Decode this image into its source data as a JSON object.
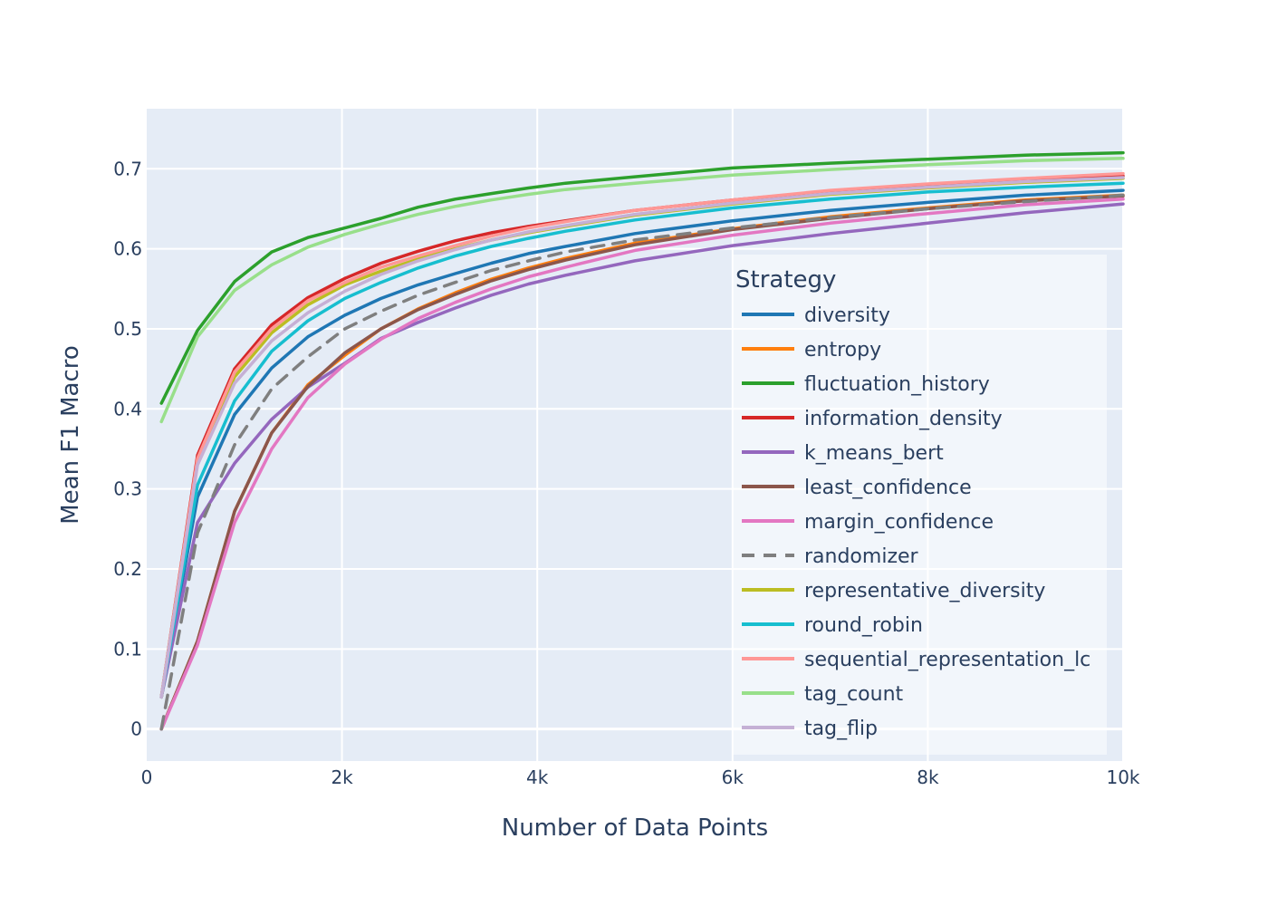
{
  "chart_data": {
    "type": "line",
    "title": "",
    "xlabel": "Number of Data Points",
    "ylabel": "Mean F1 Macro",
    "xlim": [
      0,
      10000
    ],
    "ylim": [
      -0.04,
      0.775
    ],
    "x_ticks": [
      0,
      2000,
      4000,
      6000,
      8000,
      10000
    ],
    "x_tick_labels": [
      "0",
      "2k",
      "4k",
      "6k",
      "8k",
      "10k"
    ],
    "y_ticks": [
      0,
      0.1,
      0.2,
      0.3,
      0.4,
      0.5,
      0.6,
      0.7
    ],
    "y_tick_labels": [
      "0",
      "0.1",
      "0.2",
      "0.3",
      "0.4",
      "0.5",
      "0.6",
      "0.7"
    ],
    "grid": true,
    "legend_title": "Strategy",
    "legend_position": "bottom-right",
    "x": [
      150,
      520,
      900,
      1280,
      1650,
      2030,
      2400,
      2780,
      3160,
      3530,
      3910,
      4290,
      5000,
      6000,
      7000,
      8000,
      9000,
      10000
    ],
    "series": [
      {
        "name": "diversity",
        "color": "#1f77b4",
        "dash": false,
        "values": [
          0.04,
          0.29,
          0.393,
          0.451,
          0.49,
          0.517,
          0.538,
          0.555,
          0.569,
          0.582,
          0.594,
          0.603,
          0.619,
          0.635,
          0.648,
          0.658,
          0.667,
          0.673
        ]
      },
      {
        "name": "entropy",
        "color": "#ff7f0e",
        "dash": false,
        "values": [
          0.0,
          0.11,
          0.272,
          0.37,
          0.43,
          0.467,
          0.5,
          0.525,
          0.545,
          0.562,
          0.576,
          0.588,
          0.607,
          0.625,
          0.64,
          0.651,
          0.661,
          0.667
        ]
      },
      {
        "name": "fluctuation_history",
        "color": "#2ca02c",
        "dash": false,
        "values": [
          0.407,
          0.498,
          0.559,
          0.596,
          0.614,
          0.626,
          0.638,
          0.652,
          0.662,
          0.669,
          0.676,
          0.682,
          0.69,
          0.701,
          0.707,
          0.712,
          0.717,
          0.72
        ]
      },
      {
        "name": "information_density",
        "color": "#d62728",
        "dash": false,
        "values": [
          0.04,
          0.342,
          0.45,
          0.505,
          0.539,
          0.563,
          0.582,
          0.597,
          0.61,
          0.62,
          0.628,
          0.635,
          0.648,
          0.661,
          0.672,
          0.68,
          0.686,
          0.691
        ]
      },
      {
        "name": "k_means_bert",
        "color": "#9467bd",
        "dash": false,
        "values": [
          0.04,
          0.258,
          0.332,
          0.387,
          0.427,
          0.457,
          0.488,
          0.508,
          0.526,
          0.542,
          0.556,
          0.567,
          0.585,
          0.604,
          0.619,
          0.632,
          0.645,
          0.656
        ]
      },
      {
        "name": "least_confidence",
        "color": "#8c564b",
        "dash": false,
        "values": [
          0.0,
          0.11,
          0.272,
          0.37,
          0.428,
          0.47,
          0.5,
          0.524,
          0.543,
          0.56,
          0.574,
          0.586,
          0.605,
          0.624,
          0.638,
          0.65,
          0.66,
          0.666
        ]
      },
      {
        "name": "margin_confidence",
        "color": "#e377c2",
        "dash": false,
        "values": [
          0.0,
          0.105,
          0.258,
          0.35,
          0.414,
          0.456,
          0.487,
          0.513,
          0.533,
          0.55,
          0.565,
          0.577,
          0.598,
          0.617,
          0.632,
          0.644,
          0.655,
          0.662
        ]
      },
      {
        "name": "randomizer",
        "color": "#7f7f7f",
        "dash": true,
        "values": [
          0.0,
          0.245,
          0.355,
          0.425,
          0.465,
          0.5,
          0.522,
          0.542,
          0.558,
          0.573,
          0.585,
          0.596,
          0.611,
          0.626,
          0.639,
          0.65,
          0.659,
          0.667
        ]
      },
      {
        "name": "representative_diversity",
        "color": "#bcbd22",
        "dash": false,
        "values": [
          0.04,
          0.335,
          0.44,
          0.495,
          0.53,
          0.555,
          0.572,
          0.587,
          0.6,
          0.611,
          0.62,
          0.628,
          0.642,
          0.656,
          0.668,
          0.676,
          0.683,
          0.688
        ]
      },
      {
        "name": "round_robin",
        "color": "#17becf",
        "dash": false,
        "values": [
          0.04,
          0.305,
          0.41,
          0.472,
          0.51,
          0.538,
          0.558,
          0.576,
          0.591,
          0.603,
          0.613,
          0.622,
          0.636,
          0.651,
          0.662,
          0.671,
          0.677,
          0.682
        ]
      },
      {
        "name": "sequential_representation_lc",
        "color": "#ff9896",
        "dash": false,
        "values": [
          0.04,
          0.338,
          0.446,
          0.5,
          0.535,
          0.558,
          0.577,
          0.591,
          0.604,
          0.616,
          0.626,
          0.634,
          0.648,
          0.661,
          0.673,
          0.681,
          0.688,
          0.694
        ]
      },
      {
        "name": "tag_count",
        "color": "#98df8a",
        "dash": false,
        "values": [
          0.384,
          0.49,
          0.548,
          0.58,
          0.602,
          0.618,
          0.631,
          0.643,
          0.653,
          0.661,
          0.668,
          0.674,
          0.682,
          0.692,
          0.699,
          0.705,
          0.71,
          0.713
        ]
      },
      {
        "name": "tag_flip",
        "color": "#c5b0d5",
        "dash": false,
        "values": [
          0.04,
          0.33,
          0.432,
          0.485,
          0.52,
          0.547,
          0.568,
          0.585,
          0.599,
          0.611,
          0.621,
          0.629,
          0.643,
          0.657,
          0.669,
          0.677,
          0.684,
          0.689
        ]
      }
    ]
  }
}
